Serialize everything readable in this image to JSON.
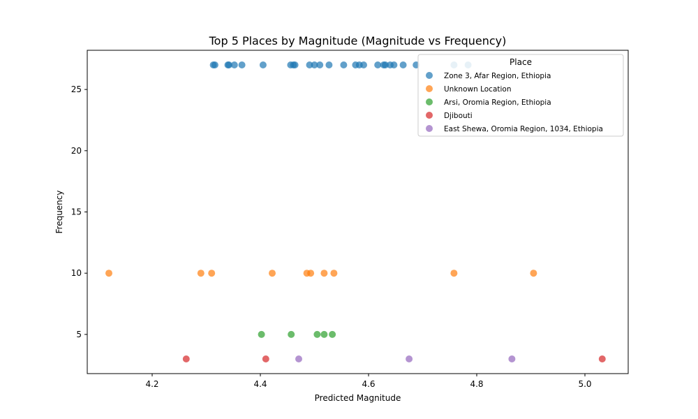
{
  "chart_data": {
    "type": "scatter",
    "title": "Top 5 Places by Magnitude (Magnitude vs Frequency)",
    "xlabel": "Predicted Magnitude",
    "ylabel": "Frequency",
    "xlim": [
      4.08,
      5.08
    ],
    "ylim": [
      1.8,
      28.2
    ],
    "xticks": [
      4.2,
      4.4,
      4.6,
      4.8,
      5.0
    ],
    "yticks": [
      5,
      10,
      15,
      20,
      25
    ],
    "xtick_labels": [
      "4.2",
      "4.4",
      "4.6",
      "4.8",
      "5.0"
    ],
    "ytick_labels": [
      "5",
      "10",
      "15",
      "20",
      "25"
    ],
    "grid": false,
    "legend": {
      "title": "Place",
      "placement": "top-right"
    },
    "series": [
      {
        "name": "Zone 3, Afar Region, Ethiopia",
        "color": "#1f77b4",
        "points": [
          [
            4.313,
            27
          ],
          [
            4.316,
            27
          ],
          [
            4.34,
            27
          ],
          [
            4.342,
            27
          ],
          [
            4.352,
            27
          ],
          [
            4.366,
            27
          ],
          [
            4.405,
            27
          ],
          [
            4.456,
            27
          ],
          [
            4.461,
            27
          ],
          [
            4.464,
            27
          ],
          [
            4.491,
            27
          ],
          [
            4.5,
            27
          ],
          [
            4.51,
            27
          ],
          [
            4.527,
            27
          ],
          [
            4.554,
            27
          ],
          [
            4.576,
            27
          ],
          [
            4.583,
            27
          ],
          [
            4.591,
            27
          ],
          [
            4.617,
            27
          ],
          [
            4.628,
            27
          ],
          [
            4.631,
            27
          ],
          [
            4.64,
            27
          ],
          [
            4.647,
            27
          ],
          [
            4.664,
            27
          ],
          [
            4.688,
            27
          ],
          [
            4.758,
            27
          ],
          [
            4.784,
            27
          ]
        ]
      },
      {
        "name": "Unknown Location",
        "color": "#ff7f0e",
        "points": [
          [
            4.12,
            10
          ],
          [
            4.29,
            10
          ],
          [
            4.31,
            10
          ],
          [
            4.422,
            10
          ],
          [
            4.486,
            10
          ],
          [
            4.493,
            10
          ],
          [
            4.518,
            10
          ],
          [
            4.536,
            10
          ],
          [
            4.758,
            10
          ],
          [
            4.905,
            10
          ]
        ]
      },
      {
        "name": "Arsi, Oromia Region, Ethiopia",
        "color": "#2ca02c",
        "points": [
          [
            4.402,
            5
          ],
          [
            4.457,
            5
          ],
          [
            4.505,
            5
          ],
          [
            4.518,
            5
          ],
          [
            4.533,
            5
          ]
        ]
      },
      {
        "name": "Djibouti",
        "color": "#d62728",
        "points": [
          [
            4.263,
            3
          ],
          [
            4.41,
            3
          ],
          [
            5.032,
            3
          ]
        ]
      },
      {
        "name": "East Shewa, Oromia Region, 1034, Ethiopia",
        "color": "#9467bd",
        "points": [
          [
            4.471,
            3
          ],
          [
            4.675,
            3
          ],
          [
            4.865,
            3
          ]
        ]
      }
    ]
  }
}
